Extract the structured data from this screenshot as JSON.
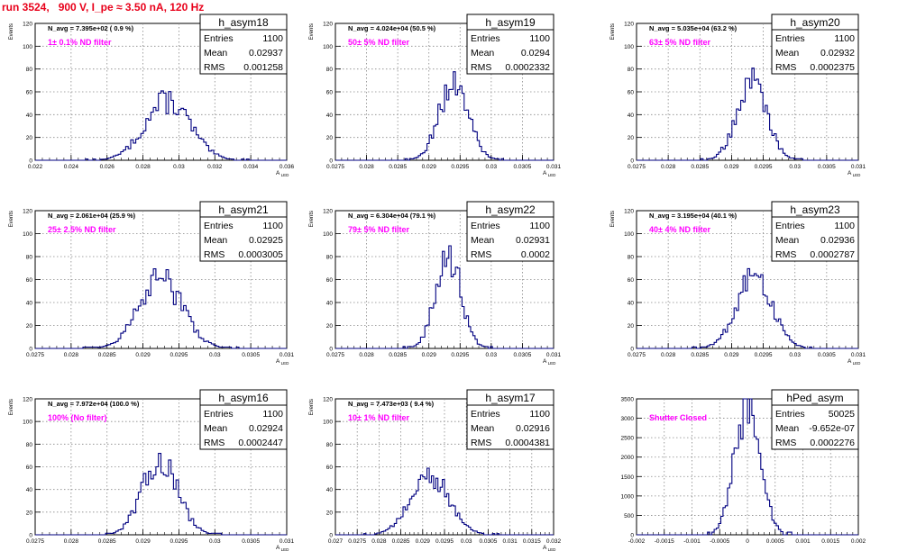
{
  "page_title": "run 3524,   900 V, I_pe ≈ 3.50 nA, 120 Hz",
  "chart_data": [
    {
      "type": "histogram",
      "name": "h_asym18",
      "stats": {
        "Entries": "1100",
        "Mean": "0.02937",
        "RMS": "0.001258"
      },
      "navg": "N_avg = 7.395e+02 ( 0.9 %)",
      "note": "1± 0.1% ND filter",
      "ylabel": "Events",
      "xlabel": "A_LED",
      "xlim": [
        0.022,
        0.036
      ],
      "ylim": [
        0,
        120
      ],
      "yticks": [
        0,
        20,
        40,
        60,
        80,
        100,
        120
      ],
      "xticks": [
        "0.022",
        "0.024",
        "0.026",
        "0.028",
        "0.03",
        "0.032",
        "0.034",
        "0.036"
      ],
      "mean": 0.02937,
      "sigma": 0.001258,
      "peak": 52,
      "grid": true
    },
    {
      "type": "histogram",
      "name": "h_asym19",
      "stats": {
        "Entries": "1100",
        "Mean": "0.0294",
        "RMS": "0.0002332"
      },
      "navg": "N_avg = 4.024e+04 (50.5 %)",
      "note": "50± 5% ND filter",
      "ylabel": "Events",
      "xlabel": "A_LED",
      "xlim": [
        0.0275,
        0.031
      ],
      "ylim": [
        0,
        120
      ],
      "yticks": [
        0,
        20,
        40,
        60,
        80,
        100,
        120
      ],
      "xticks": [
        "0.0275",
        "0.028",
        "0.0285",
        "0.029",
        "0.0295",
        "0.03",
        "0.0305",
        "0.031"
      ],
      "mean": 0.0294,
      "sigma": 0.0002332,
      "peak": 68,
      "grid": true
    },
    {
      "type": "histogram",
      "name": "h_asym20",
      "stats": {
        "Entries": "1100",
        "Mean": "0.02932",
        "RMS": "0.0002375"
      },
      "navg": "N_avg = 5.035e+04 (63.2 %)",
      "note": "63± 5% ND filter",
      "ylabel": "Events",
      "xlabel": "A_LED",
      "xlim": [
        0.0275,
        0.031
      ],
      "ylim": [
        0,
        120
      ],
      "yticks": [
        0,
        20,
        40,
        60,
        80,
        100,
        120
      ],
      "xticks": [
        "0.0275",
        "0.028",
        "0.0285",
        "0.029",
        "0.0295",
        "0.03",
        "0.0305",
        "0.031"
      ],
      "mean": 0.02932,
      "sigma": 0.0002375,
      "peak": 68,
      "grid": true
    },
    {
      "type": "histogram",
      "name": "h_asym21",
      "stats": {
        "Entries": "1100",
        "Mean": "0.02925",
        "RMS": "0.0003005"
      },
      "navg": "N_avg = 2.061e+04 (25.9 %)",
      "note": "25± 2.5% ND filter",
      "ylabel": "Events",
      "xlabel": "A_LED",
      "xlim": [
        0.0275,
        0.031
      ],
      "ylim": [
        0,
        120
      ],
      "yticks": [
        0,
        20,
        40,
        60,
        80,
        100,
        120
      ],
      "xticks": [
        "0.0275",
        "0.028",
        "0.0285",
        "0.029",
        "0.0295",
        "0.03",
        "0.0305",
        "0.031"
      ],
      "mean": 0.02925,
      "sigma": 0.0003005,
      "peak": 60,
      "grid": true
    },
    {
      "type": "histogram",
      "name": "h_asym22",
      "stats": {
        "Entries": "1100",
        "Mean": "0.02931",
        "RMS": "0.0002"
      },
      "navg": "N_avg = 6.304e+04 (79.1 %)",
      "note": "79± 5% ND filter",
      "ylabel": "Events",
      "xlabel": "A_LED",
      "xlim": [
        0.0275,
        0.031
      ],
      "ylim": [
        0,
        120
      ],
      "yticks": [
        0,
        20,
        40,
        60,
        80,
        100,
        120
      ],
      "xticks": [
        "0.0275",
        "0.028",
        "0.0285",
        "0.029",
        "0.0295",
        "0.03",
        "0.0305",
        "0.031"
      ],
      "mean": 0.02931,
      "sigma": 0.0002,
      "peak": 82,
      "grid": true
    },
    {
      "type": "histogram",
      "name": "h_asym23",
      "stats": {
        "Entries": "1100",
        "Mean": "0.02936",
        "RMS": "0.0002787"
      },
      "navg": "N_avg = 3.195e+04 (40.1 %)",
      "note": "40± 4% ND filter",
      "ylabel": "Events",
      "xlabel": "A_LED",
      "xlim": [
        0.0275,
        0.031
      ],
      "ylim": [
        0,
        120
      ],
      "yticks": [
        0,
        20,
        40,
        60,
        80,
        100,
        120
      ],
      "xticks": [
        "0.0275",
        "0.028",
        "0.0285",
        "0.029",
        "0.0295",
        "0.03",
        "0.0305",
        "0.031"
      ],
      "mean": 0.02936,
      "sigma": 0.0002787,
      "peak": 62,
      "grid": true
    },
    {
      "type": "histogram",
      "name": "h_asym16",
      "stats": {
        "Entries": "1100",
        "Mean": "0.02924",
        "RMS": "0.0002447"
      },
      "navg": "N_avg = 7.972e+04 (100.0 %)",
      "note": "100% (No filter)",
      "ylabel": "Events",
      "xlabel": "A_LED",
      "xlim": [
        0.0275,
        0.031
      ],
      "ylim": [
        0,
        120
      ],
      "yticks": [
        0,
        20,
        40,
        60,
        80,
        100,
        120
      ],
      "xticks": [
        "0.0275",
        "0.028",
        "0.0285",
        "0.029",
        "0.0295",
        "0.03",
        "0.0305",
        "0.031"
      ],
      "mean": 0.02924,
      "sigma": 0.0002447,
      "peak": 66,
      "grid": true
    },
    {
      "type": "histogram",
      "name": "h_asym17",
      "stats": {
        "Entries": "1100",
        "Mean": "0.02916",
        "RMS": "0.0004381"
      },
      "navg": "N_avg = 7.473e+03 ( 9.4 %)",
      "note": "10± 1% ND filter",
      "ylabel": "Events",
      "xlabel": "A_LED",
      "xlim": [
        0.027,
        0.032
      ],
      "ylim": [
        0,
        120
      ],
      "yticks": [
        0,
        20,
        40,
        60,
        80,
        100,
        120
      ],
      "xticks": [
        "0.027",
        "0.0275",
        "0.028",
        "0.0285",
        "0.029",
        "0.0295",
        "0.03",
        "0.0305",
        "0.031",
        "0.0315",
        "0.032"
      ],
      "mean": 0.02916,
      "sigma": 0.0004381,
      "peak": 52,
      "grid": true
    },
    {
      "type": "histogram",
      "name": "hPed_asym",
      "stats": {
        "Entries": "50025",
        "Mean": "-9.652e-07",
        "RMS": "0.0002276"
      },
      "navg": "",
      "note": "Shutter Closed",
      "ylabel": "",
      "xlabel": "",
      "xlim": [
        -0.002,
        0.002
      ],
      "ylim": [
        0,
        3500
      ],
      "yticks": [
        0,
        500,
        1000,
        1500,
        2000,
        2500,
        3000,
        3500
      ],
      "xticks": [
        "-0.002",
        "-0.0015",
        "-0.001",
        "-0.0005",
        "0",
        "0.0005",
        "0.001",
        "0.0015",
        "0.002"
      ],
      "mean": 0.0,
      "sigma": 0.0002276,
      "peak": 3400,
      "grid": true
    }
  ],
  "colors": {
    "title": "#e8001a",
    "note": "#ff00ff",
    "line": "#000080",
    "grid": "#888888"
  }
}
